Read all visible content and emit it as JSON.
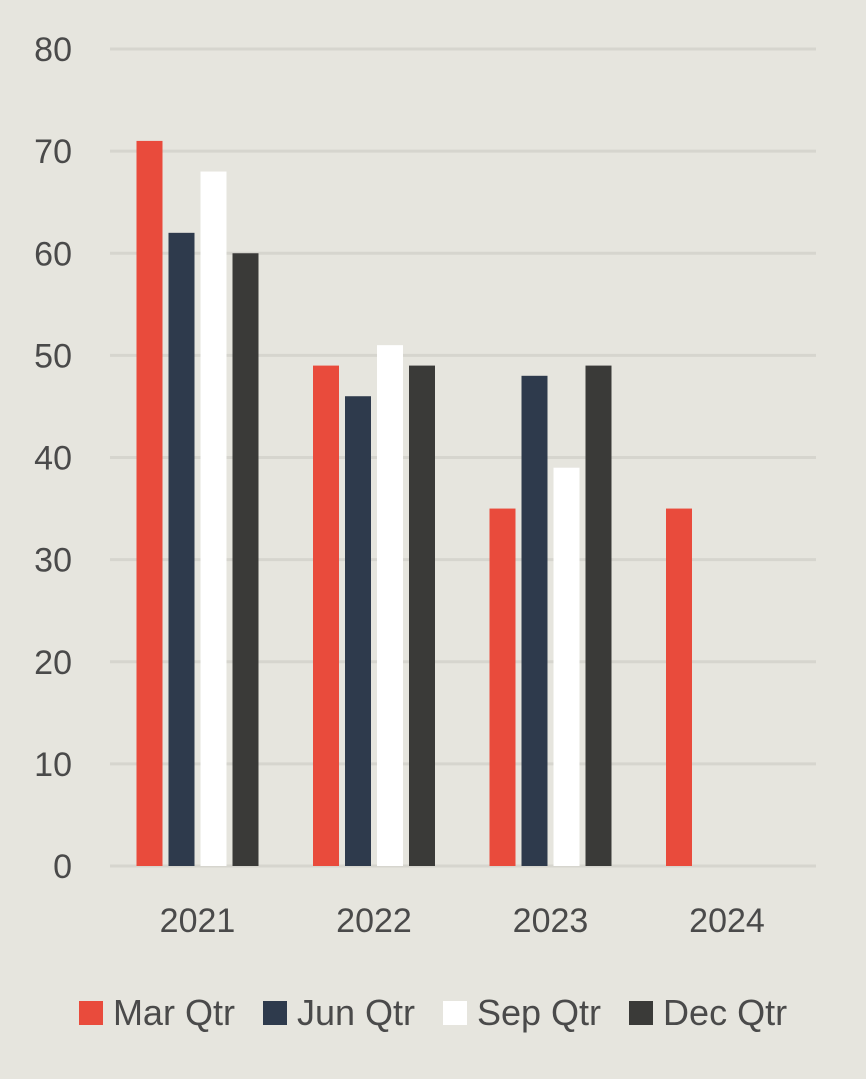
{
  "chart_data": {
    "type": "bar",
    "title": "",
    "xlabel": "",
    "ylabel": "",
    "categories": [
      "2021",
      "2022",
      "2023",
      "2024"
    ],
    "ylim": [
      0,
      80
    ],
    "yticks": [
      "0",
      "10",
      "20",
      "30",
      "40",
      "50",
      "60",
      "70",
      "80"
    ],
    "grid": true,
    "legend_position": "bottom",
    "series": [
      {
        "name": "Mar Qtr",
        "color": "#e94b3c",
        "values": [
          71,
          49,
          35,
          35
        ]
      },
      {
        "name": "Jun Qtr",
        "color": "#2e3a4c",
        "values": [
          62,
          46,
          48,
          null
        ]
      },
      {
        "name": "Sep Qtr",
        "color": "#ffffff",
        "values": [
          68,
          51,
          39,
          null
        ]
      },
      {
        "name": "Dec Qtr",
        "color": "#3a3a38",
        "values": [
          60,
          49,
          49,
          null
        ]
      }
    ]
  }
}
